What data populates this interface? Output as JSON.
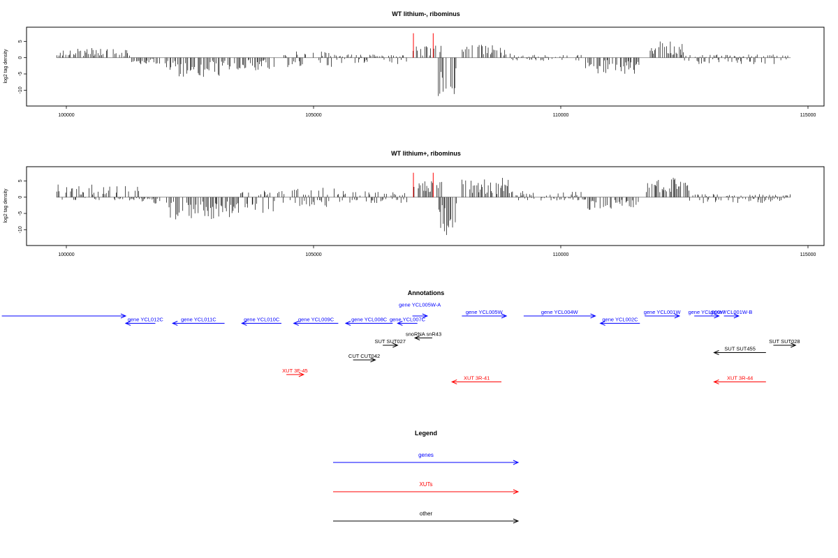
{
  "colors": {
    "axis": "#000000",
    "data": "#000000",
    "highlight": "#ff0000",
    "baseline": "#888888",
    "genes": "#0000ff",
    "xuts": "#ff0000",
    "other": "#000000"
  },
  "chart_data": [
    {
      "type": "bar",
      "title": "WT lithium-, ribominus",
      "ylabel": "log2 tag density",
      "xlabel": "",
      "xlim": [
        99500,
        115500
      ],
      "ylim": [
        -14,
        8.5
      ],
      "xticks": [
        100000,
        105000,
        110000,
        115000
      ],
      "yticks": [
        5,
        0,
        -5,
        -10
      ],
      "series": [
        {
          "color": "black",
          "segments": [
            {
              "x": [
                99800,
                101300
              ],
              "min": 0,
              "max": 3
            },
            {
              "x": [
                101300,
                101900
              ],
              "min": -2,
              "max": 0
            },
            {
              "x": [
                102000,
                103400
              ],
              "min": -6,
              "max": 0
            },
            {
              "x": [
                103400,
                104300
              ],
              "min": -4,
              "max": 0
            },
            {
              "x": [
                104400,
                105400
              ],
              "min": -3,
              "max": 2
            },
            {
              "x": [
                105400,
                106900
              ],
              "min": -2,
              "max": 1
            },
            {
              "x": [
                107000,
                107600
              ],
              "min": 0,
              "max": 4
            },
            {
              "x": [
                107500,
                107900
              ],
              "min": -12,
              "max": 0
            },
            {
              "x": [
                108000,
                109000
              ],
              "min": 0,
              "max": 4
            },
            {
              "x": [
                109000,
                110500
              ],
              "min": -1,
              "max": 1
            },
            {
              "x": [
                110500,
                111600
              ],
              "min": -5,
              "max": 0
            },
            {
              "x": [
                111800,
                112500
              ],
              "min": 0,
              "max": 5
            },
            {
              "x": [
                112500,
                114600
              ],
              "min": -2,
              "max": 1
            }
          ]
        },
        {
          "color": "red",
          "points": [
            {
              "x": 107020,
              "y": 7.5
            },
            {
              "x": 107420,
              "y": 7.5
            }
          ]
        }
      ]
    },
    {
      "type": "bar",
      "title": "WT lithium+, ribominus",
      "ylabel": "log2 tag density",
      "xlabel": "",
      "xlim": [
        99500,
        115500
      ],
      "ylim": [
        -14,
        8.5
      ],
      "xticks": [
        100000,
        105000,
        110000,
        115000
      ],
      "yticks": [
        5,
        0,
        -5,
        -10
      ],
      "series": [
        {
          "color": "black",
          "segments": [
            {
              "x": [
                99800,
                101500
              ],
              "min": -1,
              "max": 4
            },
            {
              "x": [
                101500,
                101900
              ],
              "min": -2,
              "max": 0
            },
            {
              "x": [
                102000,
                103500
              ],
              "min": -7,
              "max": 0
            },
            {
              "x": [
                103500,
                104400
              ],
              "min": -5,
              "max": 2
            },
            {
              "x": [
                104400,
                105500
              ],
              "min": -3,
              "max": 3
            },
            {
              "x": [
                105500,
                106900
              ],
              "min": -2,
              "max": 2
            },
            {
              "x": [
                107000,
                107600
              ],
              "min": 0,
              "max": 5
            },
            {
              "x": [
                107500,
                107900
              ],
              "min": -12,
              "max": 0
            },
            {
              "x": [
                108000,
                109000
              ],
              "min": 0,
              "max": 6
            },
            {
              "x": [
                109000,
                110500
              ],
              "min": -1,
              "max": 2
            },
            {
              "x": [
                110500,
                111600
              ],
              "min": -4,
              "max": 0
            },
            {
              "x": [
                111700,
                112600
              ],
              "min": 0,
              "max": 6
            },
            {
              "x": [
                112600,
                114650
              ],
              "min": -2,
              "max": 1
            }
          ]
        },
        {
          "color": "red",
          "points": [
            {
              "x": 107020,
              "y": 7.5
            },
            {
              "x": 107420,
              "y": 7.5
            }
          ]
        }
      ]
    }
  ],
  "annotations": {
    "title": "Annotations",
    "items": [
      {
        "label": "gene YCL012C",
        "start": 99500,
        "end": 101200,
        "row": 0,
        "dir": "right",
        "kind": "gene",
        "label_row": 1,
        "label_x": 101600
      },
      {
        "label": "gene YCL012C",
        "start": 101200,
        "end": 101800,
        "row": 1,
        "dir": "left",
        "kind": "gene",
        "hide_label": true
      },
      {
        "label": "gene YCL011C",
        "start": 102150,
        "end": 103200,
        "row": 1,
        "dir": "left",
        "kind": "gene"
      },
      {
        "label": "gene YCL010C",
        "start": 103550,
        "end": 104350,
        "row": 1,
        "dir": "left",
        "kind": "gene"
      },
      {
        "label": "gene YCL009C",
        "start": 104600,
        "end": 105500,
        "row": 1,
        "dir": "left",
        "kind": "gene"
      },
      {
        "label": "gene YCL008C",
        "start": 105650,
        "end": 106600,
        "row": 1,
        "dir": "left",
        "kind": "gene"
      },
      {
        "label": "gene YCL007C",
        "start": 106700,
        "end": 107100,
        "row": 1,
        "dir": "left",
        "kind": "gene"
      },
      {
        "label": "gene YCL005W-A",
        "start": 107000,
        "end": 107300,
        "row": 0,
        "dir": "right",
        "kind": "gene",
        "label_row": -1
      },
      {
        "label": "gene YCL005W",
        "start": 108000,
        "end": 108900,
        "row": 0,
        "dir": "right",
        "kind": "gene"
      },
      {
        "label": "gene YCL004W",
        "start": 109250,
        "end": 110700,
        "row": 0,
        "dir": "right",
        "kind": "gene"
      },
      {
        "label": "gene YCL002C",
        "start": 110800,
        "end": 111600,
        "row": 1,
        "dir": "left",
        "kind": "gene"
      },
      {
        "label": "gene YCL001W",
        "start": 111700,
        "end": 112400,
        "row": 0,
        "dir": "right",
        "kind": "gene"
      },
      {
        "label": "gene YCL000W",
        "start": 112700,
        "end": 113200,
        "row": 0,
        "dir": "right",
        "kind": "gene"
      },
      {
        "label": "gene YCL001W-B",
        "start": 113300,
        "end": 113600,
        "row": 0,
        "dir": "right",
        "kind": "gene"
      },
      {
        "label": "snoRNA snR43",
        "start": 107050,
        "end": 107400,
        "row": 3,
        "dir": "left",
        "kind": "other"
      },
      {
        "label": "SUT SUT027",
        "start": 106400,
        "end": 106700,
        "row": 4,
        "dir": "right",
        "kind": "other"
      },
      {
        "label": "SUT SUT455",
        "start": 113100,
        "end": 114150,
        "row": 5,
        "dir": "left",
        "kind": "other"
      },
      {
        "label": "SUT SUT028",
        "start": 114300,
        "end": 114750,
        "row": 4,
        "dir": "right",
        "kind": "other"
      },
      {
        "label": "CUT CUT042",
        "start": 105800,
        "end": 106250,
        "row": 6,
        "dir": "right",
        "kind": "other"
      },
      {
        "label": "XUT 3F-45",
        "start": 104450,
        "end": 104800,
        "row": 8,
        "dir": "right",
        "kind": "xut"
      },
      {
        "label": "XUT 3R-41",
        "start": 107800,
        "end": 108800,
        "row": 9,
        "dir": "left",
        "kind": "xut"
      },
      {
        "label": "XUT 3R-44",
        "start": 113100,
        "end": 114150,
        "row": 9,
        "dir": "left",
        "kind": "xut"
      }
    ]
  },
  "legend": {
    "title": "Legend",
    "items": [
      {
        "label": "genes",
        "kind": "gene"
      },
      {
        "label": "XUTs",
        "kind": "xut"
      },
      {
        "label": "other",
        "kind": "other"
      }
    ]
  }
}
